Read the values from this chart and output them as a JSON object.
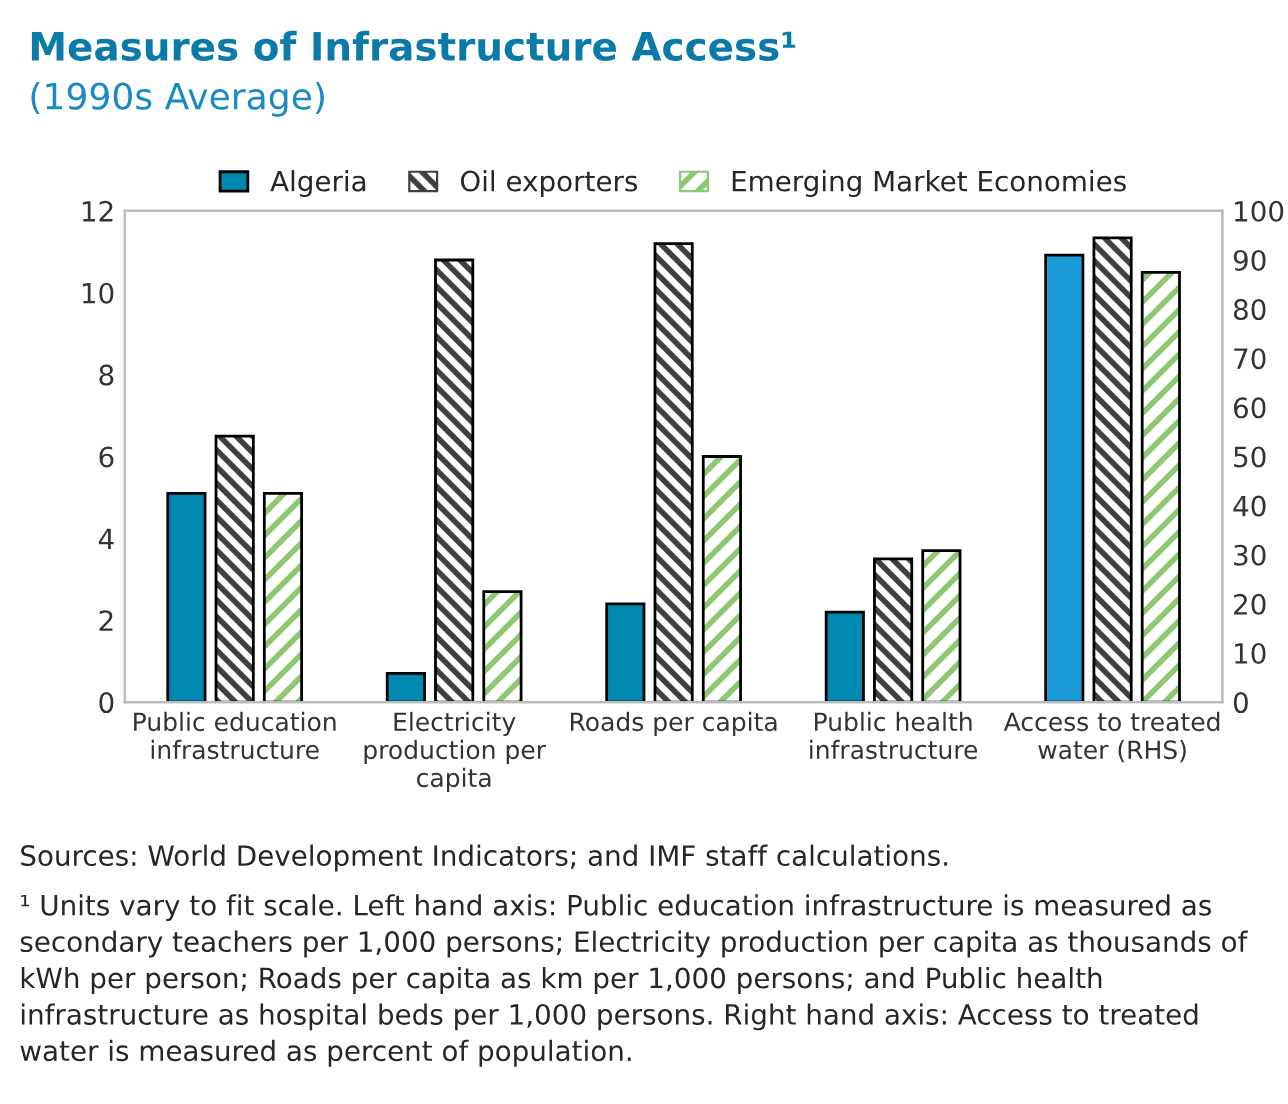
{
  "chart_data": {
    "type": "bar",
    "title": "Measures of Infrastructure Access¹",
    "subtitle": "(1990s Average)",
    "categories": [
      "Public education\ninfrastructure",
      "Electricity\nproduction per\ncapita",
      "Roads per capita",
      "Public health\ninfrastructure",
      "Access to treated\nwater (RHS)"
    ],
    "series": [
      {
        "name": "Algeria",
        "color": "#0089b0",
        "values": [
          5.1,
          0.7,
          2.4,
          2.2,
          null
        ]
      },
      {
        "name": "Oil exporters",
        "color": "#404040",
        "values": [
          6.5,
          10.8,
          11.2,
          3.5,
          null
        ]
      },
      {
        "name": "Emerging Market Economies",
        "color": "#8cc870",
        "values": [
          5.1,
          2.7,
          6.0,
          3.7,
          null
        ]
      },
      {
        "color": "#1a9ad6",
        "axis": "y2",
        "values": [
          null,
          null,
          null,
          null,
          91
        ]
      },
      {
        "color": "#404040",
        "axis": "y2",
        "values": [
          null,
          null,
          null,
          null,
          94.5
        ]
      },
      {
        "color": "#8cc870",
        "axis": "y2",
        "values": [
          null,
          null,
          null,
          null,
          87.5
        ]
      }
    ],
    "ylim": [
      0,
      12
    ],
    "yticks": [
      0,
      2,
      4,
      6,
      8,
      10,
      12
    ],
    "y2lim": [
      0,
      100
    ],
    "y2ticks": [
      0,
      10,
      20,
      30,
      40,
      50,
      60,
      70,
      80,
      90,
      100
    ],
    "grid": false,
    "legend": "top",
    "annotations": [
      "Sources: World Development Indicators; and IMF staff calculations.",
      "¹ Units vary to fit scale. Left hand axis: Public education infrastructure is measured as secondary teachers per 1,000 persons; Electricity production per capita as thousands of kWh per person; Roads per capita as km per 1,000 persons; and Public health infrastructure as hospital beds per 1,000 persons. Right hand axis: Access to treated water is measured as percent of population."
    ]
  }
}
